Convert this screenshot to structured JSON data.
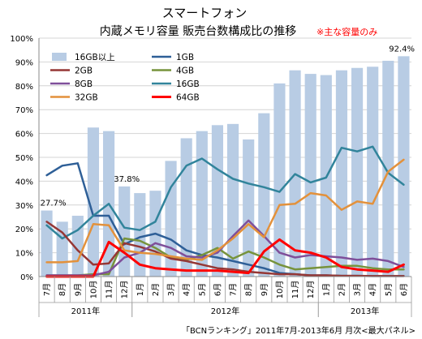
{
  "chart_data": {
    "type": "bar",
    "title": "スマートフォン",
    "subtitle": "内蔵メモリ容量 販売台数構成比の推移",
    "note": "※主な容量のみ",
    "source": "「BCNランキング」2011年7月-2013年6月 月次<最大パネル>",
    "categories": [
      "7月",
      "8月",
      "9月",
      "10月",
      "11月",
      "12月",
      "1月",
      "2月",
      "3月",
      "4月",
      "5月",
      "6月",
      "7月",
      "8月",
      "9月",
      "10月",
      "11月",
      "12月",
      "1月",
      "2月",
      "3月",
      "4月",
      "5月",
      "6月"
    ],
    "year_labels": [
      {
        "label": "2011年",
        "start": 0,
        "end": 5
      },
      {
        "label": "2012年",
        "start": 6,
        "end": 17
      },
      {
        "label": "2013年",
        "start": 18,
        "end": 23
      }
    ],
    "y_ticks": [
      "0%",
      "10%",
      "20%",
      "30%",
      "40%",
      "50%",
      "60%",
      "70%",
      "80%",
      "90%",
      "100%"
    ],
    "ylim": [
      0,
      100
    ],
    "grid": true,
    "legend_position": "top-left",
    "annotations": [
      {
        "index": 0,
        "text": "27.7%"
      },
      {
        "index": 5,
        "text": "37.8%"
      },
      {
        "index": 23,
        "text": "92.4%"
      }
    ],
    "bar_series": {
      "name": "16GB以上",
      "color": "#b8cce4",
      "values": [
        27.7,
        23,
        25.5,
        62.5,
        61,
        37.8,
        35,
        36,
        48.5,
        58,
        61,
        63.5,
        64,
        57.5,
        68.5,
        81,
        86.5,
        85,
        84.5,
        86.5,
        87.5,
        88,
        90.5,
        92.4
      ]
    },
    "series": [
      {
        "name": "1GB",
        "color": "#2e5f97",
        "values": [
          42.5,
          46.5,
          47.5,
          25.5,
          25.5,
          13.5,
          16.5,
          18,
          15.5,
          11,
          9,
          8,
          6.5,
          5,
          3.5,
          1.5,
          1,
          0.5,
          0.5,
          0.3,
          0.3,
          0.2,
          0.2,
          0.2
        ]
      },
      {
        "name": "4GB",
        "color": "#77933c",
        "values": [
          0.5,
          0.5,
          0.5,
          1,
          1,
          16,
          15,
          12,
          8,
          7,
          9,
          12,
          7.5,
          10.5,
          8,
          5,
          3,
          3.5,
          4,
          4.5,
          4.5,
          3.5,
          3,
          3
        ]
      },
      {
        "name": "16GB",
        "color": "#31849b",
        "values": [
          21.5,
          16,
          19.5,
          25.5,
          30.5,
          20.5,
          19.5,
          23,
          37.5,
          46.5,
          49.5,
          45,
          41,
          39,
          37.5,
          35.5,
          43,
          39.5,
          41.5,
          54,
          52.5,
          54.5,
          43.5,
          38.5
        ]
      },
      {
        "name": "2GB",
        "color": "#953735",
        "values": [
          23,
          18.5,
          11,
          5,
          5.5,
          14,
          12.5,
          10.5,
          7.5,
          6.5,
          5,
          3.5,
          3,
          2,
          1.5,
          1,
          1,
          0.5,
          0.5,
          0.3,
          0.3,
          0.2,
          0.2,
          0.2
        ]
      },
      {
        "name": "8GB",
        "color": "#7f4f9a",
        "values": [
          0.5,
          0.5,
          0.5,
          0.5,
          2,
          8,
          10,
          14,
          12,
          8.5,
          8,
          10,
          17,
          23.5,
          17,
          10,
          8,
          9,
          8.5,
          8,
          7,
          7.5,
          6.5,
          4
        ]
      },
      {
        "name": "32GB",
        "color": "#e3913b",
        "values": [
          6,
          6,
          6.5,
          22,
          21.5,
          11,
          10,
          9.5,
          8.5,
          7.5,
          7,
          11,
          16,
          22,
          16.5,
          30,
          30.5,
          35,
          34,
          28,
          31.5,
          30.5,
          44,
          49
        ]
      },
      {
        "name": "64GB",
        "color": "#ff0000",
        "values": [
          0,
          0,
          0,
          0,
          14.5,
          10,
          5,
          3.5,
          3,
          2.5,
          2.5,
          2.5,
          2,
          1.5,
          10.5,
          15.5,
          11,
          10,
          8,
          4,
          3,
          2.5,
          2,
          5
        ]
      }
    ],
    "legend_order": [
      "16GB以上",
      "1GB",
      "2GB",
      "4GB",
      "8GB",
      "16GB",
      "32GB",
      "64GB"
    ]
  }
}
